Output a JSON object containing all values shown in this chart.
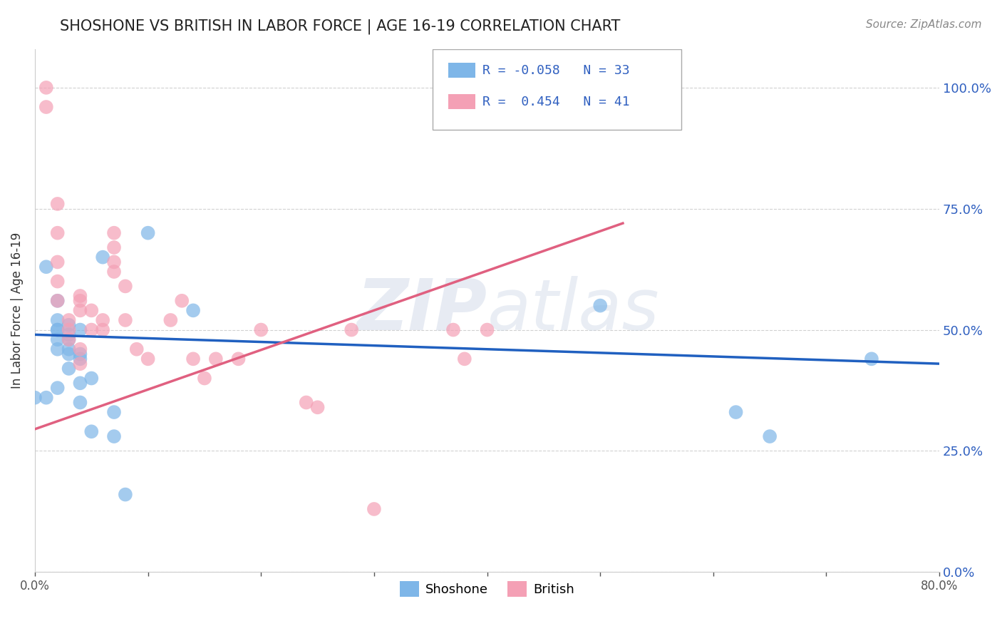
{
  "title": "SHOSHONE VS BRITISH IN LABOR FORCE | AGE 16-19 CORRELATION CHART",
  "source_text": "Source: ZipAtlas.com",
  "ylabel": "In Labor Force | Age 16-19",
  "ytick_labels": [
    "0.0%",
    "25.0%",
    "50.0%",
    "75.0%",
    "100.0%"
  ],
  "ytick_values": [
    0.0,
    0.25,
    0.5,
    0.75,
    1.0
  ],
  "xmin": 0.0,
  "xmax": 0.8,
  "ymin": 0.0,
  "ymax": 1.08,
  "shoshone_color": "#7EB6E8",
  "british_color": "#F4A0B5",
  "shoshone_line_color": "#2060C0",
  "british_line_color": "#E06080",
  "legend_R_shoshone": "-0.058",
  "legend_N_shoshone": "33",
  "legend_R_british": "0.454",
  "legend_N_british": "41",
  "legend_color": "#3060C0",
  "watermark_zip": "ZIP",
  "watermark_atlas": "atlas",
  "shoshone_line_x0": 0.0,
  "shoshone_line_y0": 0.49,
  "shoshone_line_x1": 0.8,
  "shoshone_line_y1": 0.43,
  "british_line_x0": 0.0,
  "british_line_y0": 0.295,
  "british_line_x1": 0.52,
  "british_line_y1": 0.72,
  "shoshone_x": [
    0.0,
    0.01,
    0.01,
    0.02,
    0.02,
    0.02,
    0.02,
    0.02,
    0.02,
    0.02,
    0.03,
    0.03,
    0.03,
    0.03,
    0.03,
    0.03,
    0.04,
    0.04,
    0.04,
    0.04,
    0.04,
    0.05,
    0.05,
    0.06,
    0.07,
    0.07,
    0.08,
    0.1,
    0.14,
    0.5,
    0.62,
    0.65,
    0.74
  ],
  "shoshone_y": [
    0.36,
    0.63,
    0.36,
    0.56,
    0.52,
    0.5,
    0.5,
    0.48,
    0.46,
    0.38,
    0.51,
    0.49,
    0.48,
    0.46,
    0.45,
    0.42,
    0.5,
    0.45,
    0.44,
    0.39,
    0.35,
    0.4,
    0.29,
    0.65,
    0.33,
    0.28,
    0.16,
    0.7,
    0.54,
    0.55,
    0.33,
    0.28,
    0.44
  ],
  "british_x": [
    0.01,
    0.01,
    0.02,
    0.02,
    0.02,
    0.02,
    0.02,
    0.03,
    0.03,
    0.03,
    0.04,
    0.04,
    0.04,
    0.04,
    0.04,
    0.05,
    0.05,
    0.06,
    0.06,
    0.07,
    0.07,
    0.07,
    0.07,
    0.08,
    0.08,
    0.09,
    0.1,
    0.12,
    0.13,
    0.14,
    0.15,
    0.16,
    0.18,
    0.2,
    0.24,
    0.25,
    0.28,
    0.3,
    0.37,
    0.38,
    0.4
  ],
  "british_y": [
    1.0,
    0.96,
    0.76,
    0.7,
    0.64,
    0.6,
    0.56,
    0.52,
    0.5,
    0.48,
    0.57,
    0.56,
    0.54,
    0.46,
    0.43,
    0.54,
    0.5,
    0.52,
    0.5,
    0.7,
    0.67,
    0.64,
    0.62,
    0.59,
    0.52,
    0.46,
    0.44,
    0.52,
    0.56,
    0.44,
    0.4,
    0.44,
    0.44,
    0.5,
    0.35,
    0.34,
    0.5,
    0.13,
    0.5,
    0.44,
    0.5
  ]
}
